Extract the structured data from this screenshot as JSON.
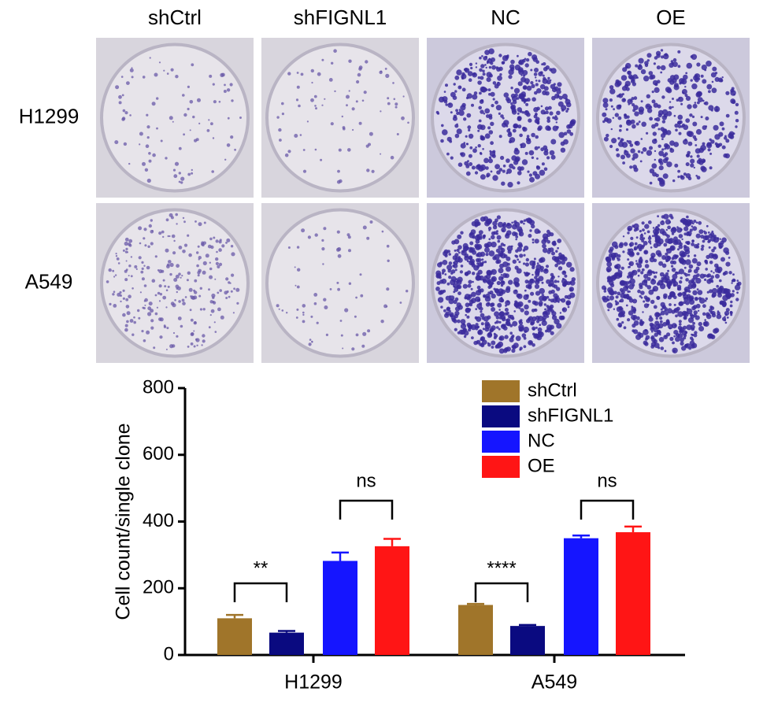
{
  "panel_labels": {
    "columns": [
      "shCtrl",
      "shFIGNL1",
      "NC",
      "OE"
    ],
    "rows": [
      "H1299",
      "A549"
    ]
  },
  "chart_data": {
    "type": "bar",
    "y_label": "Cell count/single clone",
    "categories": [
      "H1299",
      "A549"
    ],
    "series": [
      {
        "name": "shCtrl",
        "color": "#a0752a",
        "values": [
          110,
          150
        ],
        "errors": [
          10,
          3
        ]
      },
      {
        "name": "shFIGNL1",
        "color": "#0a0a80",
        "values": [
          67,
          87
        ],
        "errors": [
          5,
          3
        ]
      },
      {
        "name": "NC",
        "color": "#1515ff",
        "values": [
          282,
          350
        ],
        "errors": [
          25,
          8
        ]
      },
      {
        "name": "OE",
        "color": "#ff1515",
        "values": [
          326,
          368
        ],
        "errors": [
          22,
          17
        ]
      }
    ],
    "annotations": [
      "**",
      "ns",
      "****",
      "ns"
    ],
    "ylim": [
      0,
      800
    ],
    "yticks": [
      0,
      200,
      400,
      600,
      800
    ],
    "legend": "upper right"
  }
}
